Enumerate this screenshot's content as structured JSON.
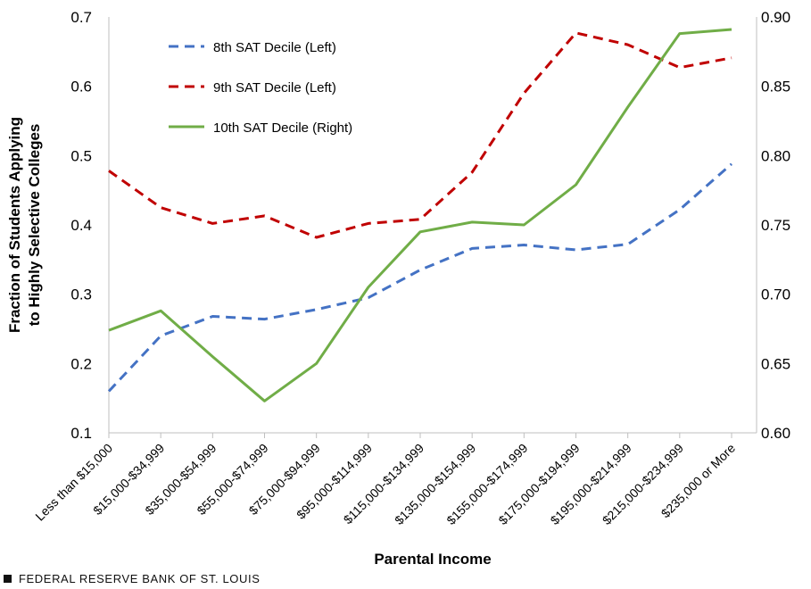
{
  "chart_data": {
    "type": "line",
    "xlabel": "Parental Income",
    "ylabel_lines": [
      "Fraction of Students Applying",
      "to Highly Selective Colleges"
    ],
    "categories": [
      "Less than $15,000",
      "$15,000-$34,999",
      "$35,000-$54,999",
      "$55,000-$74,999",
      "$75,000-$94,999",
      "$95,000-$114,999",
      "$115,000-$134,999",
      "$135,000-$154,999",
      "$155,000-$174,999",
      "$175,000-$194,999",
      "$195,000-$214,999",
      "$215,000-$234,999",
      "$235,000 or More"
    ],
    "left_axis": {
      "ylim": [
        0.1,
        0.7
      ],
      "ticks": [
        "0.1",
        "0.2",
        "0.3",
        "0.4",
        "0.5",
        "0.6",
        "0.7"
      ]
    },
    "right_axis": {
      "ylim": [
        0.6,
        0.9
      ],
      "ticks": [
        "0.60",
        "0.65",
        "0.70",
        "0.75",
        "0.80",
        "0.85",
        "0.90"
      ]
    },
    "series": [
      {
        "name": "8th SAT Decile (Left)",
        "axis": "left",
        "color": "#4472C4",
        "dash": true,
        "values": [
          0.16,
          0.24,
          0.268,
          0.264,
          0.278,
          0.295,
          0.335,
          0.366,
          0.371,
          0.364,
          0.372,
          0.422,
          0.488
        ]
      },
      {
        "name": "9th SAT Decile (Left)",
        "axis": "left",
        "color": "#C00000",
        "dash": true,
        "values": [
          0.478,
          0.425,
          0.402,
          0.413,
          0.382,
          0.402,
          0.408,
          0.476,
          0.59,
          0.677,
          0.66,
          0.627,
          0.641
        ]
      },
      {
        "name": "10th SAT Decile (Right)",
        "axis": "right",
        "color": "#70AD47",
        "dash": false,
        "values": [
          0.674,
          0.688,
          0.655,
          0.623,
          0.65,
          0.705,
          0.745,
          0.752,
          0.75,
          0.779,
          0.835,
          0.888,
          0.891
        ]
      }
    ],
    "legend_position": "top-left",
    "grid": false
  },
  "footer": {
    "text": "FEDERAL RESERVE BANK OF ST. LOUIS"
  }
}
